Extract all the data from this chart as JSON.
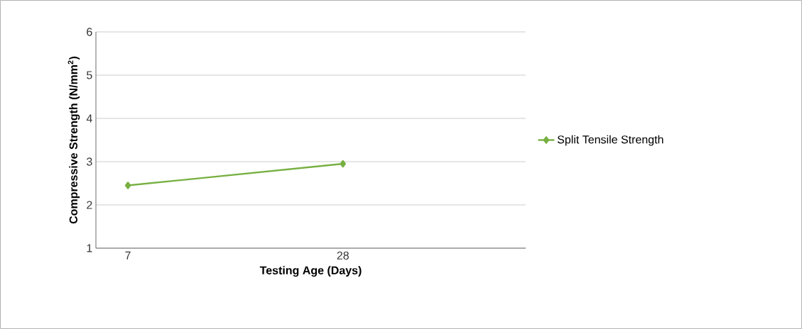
{
  "chart_data": {
    "type": "line",
    "xlabel": "Testing Age (Days)",
    "ylabel": "Compressive Strength (N/mm$^{2}$)",
    "categories": [
      "7",
      "28"
    ],
    "series": [
      {
        "name": "Split Tensile Strength",
        "color": "#77b041",
        "values": [
          2.45,
          2.95
        ]
      }
    ],
    "ylim": [
      1,
      6
    ],
    "yticks": [
      1,
      2,
      3,
      4,
      5,
      6
    ],
    "grid": "y",
    "legend": "right",
    "marker": "diamond",
    "line_style": "solid"
  }
}
